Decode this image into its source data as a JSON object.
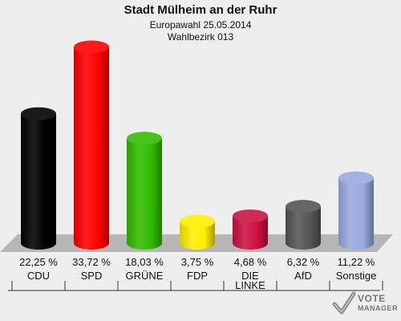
{
  "header": {
    "title": "Stadt Mülheim an der Ruhr",
    "subtitle": "Europawahl 25.05.2014",
    "district": "Wahlbezirk 013"
  },
  "chart_data": {
    "type": "bar",
    "title": "Stadt Mülheim an der Ruhr",
    "subtitle": "Europawahl 25.05.2014 · Wahlbezirk 013",
    "categories": [
      "CDU",
      "SPD",
      "GRÜNE",
      "FDP",
      "DIE LINKE",
      "AfD",
      "Sonstige"
    ],
    "category_lines": [
      [
        "CDU"
      ],
      [
        "SPD"
      ],
      [
        "GRÜNE"
      ],
      [
        "FDP"
      ],
      [
        "DIE",
        "LINKE"
      ],
      [
        "AfD"
      ],
      [
        "Sonstige"
      ]
    ],
    "values": [
      22.25,
      33.72,
      18.03,
      3.75,
      4.68,
      6.32,
      11.22
    ],
    "value_labels": [
      "22,25 %",
      "33,72 %",
      "18,03 %",
      "3,75 %",
      "4,68 %",
      "6,32 %",
      "11,22 %"
    ],
    "colors": [
      "#000000",
      "#ff0000",
      "#33bb00",
      "#ffee00",
      "#cc1144",
      "#555555",
      "#99aadd"
    ],
    "unit": "%",
    "ylim": [
      0,
      35
    ],
    "grid": false,
    "legend": "none"
  },
  "watermark": {
    "line1": "VOTE",
    "line2": "MANAGER"
  }
}
